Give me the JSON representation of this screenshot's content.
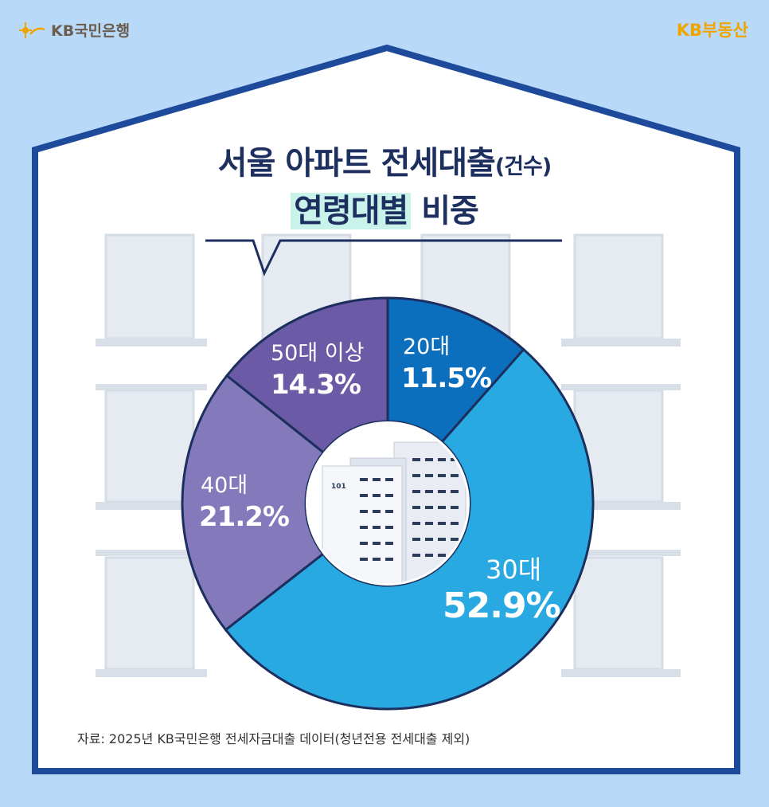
{
  "brand": {
    "left_logo": "KB국민은행",
    "right_logo": "KB부동산"
  },
  "title": {
    "line1_main": "서울 아파트 전세대출",
    "line1_paren": "(건수)",
    "line2_highlight": "연령대별",
    "line2_rest": " 비중"
  },
  "source": "자료: 2025년 KB국민은행 전세자금대출 데이터(청년전용 전세대출 제외)",
  "colors": {
    "background": "#b8d9f8",
    "house_border": "#1e4a9c",
    "title": "#1c2f5e",
    "accent_yellow": "#f0a400"
  },
  "chart_data": {
    "type": "pie",
    "variant": "donut",
    "start": "top, clockwise",
    "categories": [
      "20대",
      "30대",
      "40대",
      "50대 이상"
    ],
    "values": [
      11.5,
      52.9,
      21.2,
      14.3
    ],
    "value_labels": [
      "11.5%",
      "52.9%",
      "21.2%",
      "14.3%"
    ],
    "slice_colors": [
      "#0c6fbe",
      "#29a9e1",
      "#8479ba",
      "#6b5aa5"
    ],
    "center_image_icon": "apartment-building-icon",
    "building_number": "101"
  }
}
